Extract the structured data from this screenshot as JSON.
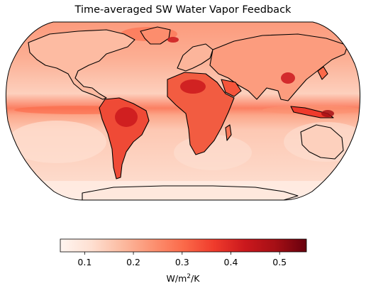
{
  "figure": {
    "title": "Time-averaged SW Water Vapor Feedback"
  },
  "colorbar": {
    "label_prefix": "W/m",
    "label_sup": "2",
    "label_suffix": "/K",
    "vmin": 0.05,
    "vmax": 0.555,
    "ticks": [
      {
        "value": 0.1,
        "label": "0.1"
      },
      {
        "value": 0.2,
        "label": "0.2"
      },
      {
        "value": 0.3,
        "label": "0.3"
      },
      {
        "value": 0.4,
        "label": "0.4"
      },
      {
        "value": 0.5,
        "label": "0.5"
      }
    ],
    "colormap": "Reds",
    "colors": [
      "#fff5f0",
      "#fee0d2",
      "#fcbba1",
      "#fc9272",
      "#fb6a4a",
      "#ef3b2c",
      "#cb181d",
      "#a50f15",
      "#67000d"
    ]
  },
  "map": {
    "projection": "Robinson",
    "ocean_color": "#fcbba1",
    "land_color": "#fb6a4a",
    "coastline_color": "#000000"
  }
}
